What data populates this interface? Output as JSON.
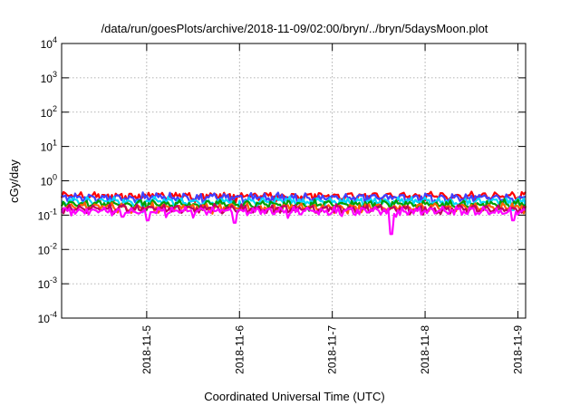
{
  "chart_data": {
    "type": "line",
    "title": "/data/run/goesPlots/archive/2018-11-09/02:00/bryn/../bryn/5daysMoon.plot",
    "xlabel": "Coordinated Universal Time (UTC)",
    "ylabel": "cGy/day",
    "yscale": "log",
    "ylim": [
      0.0001,
      10000
    ],
    "y_ticks": [
      {
        "value": 0.0001,
        "base": "10",
        "exp": "-4"
      },
      {
        "value": 0.001,
        "base": "10",
        "exp": "-3"
      },
      {
        "value": 0.01,
        "base": "10",
        "exp": "-2"
      },
      {
        "value": 0.1,
        "base": "10",
        "exp": "-1"
      },
      {
        "value": 1,
        "base": "10",
        "exp": "0"
      },
      {
        "value": 10,
        "base": "10",
        "exp": "1"
      },
      {
        "value": 100,
        "base": "10",
        "exp": "2"
      },
      {
        "value": 1000,
        "base": "10",
        "exp": "3"
      },
      {
        "value": 10000,
        "base": "10",
        "exp": "4"
      }
    ],
    "xlim": [
      "2018-11-04 02:00",
      "2018-11-09 02:00"
    ],
    "x_ticks": [
      {
        "value": "2018-11-05 00:00",
        "label": "2018-11-5"
      },
      {
        "value": "2018-11-06 00:00",
        "label": "2018-11-6"
      },
      {
        "value": "2018-11-07 00:00",
        "label": "2018-11-7"
      },
      {
        "value": "2018-11-08 00:00",
        "label": "2018-11-8"
      },
      {
        "value": "2018-11-09 00:00",
        "label": "2018-11-9"
      }
    ],
    "grid": true,
    "legend": "none",
    "series": [
      {
        "color": "#ff0000",
        "base": 0.36,
        "dips": []
      },
      {
        "color": "#4040ff",
        "base": 0.33,
        "dips": []
      },
      {
        "color": "#00d8ff",
        "base": 0.25,
        "dips": [
          {
            "x": "2018-11-04 23:00",
            "value": 0.12
          },
          {
            "x": "2018-11-05 23:10",
            "value": 0.13
          },
          {
            "x": "2018-11-08 22:50",
            "value": 0.14
          }
        ]
      },
      {
        "color": "#00a000",
        "base": 0.21,
        "dips": []
      },
      {
        "color": "#ff6000",
        "base": 0.17,
        "dips": []
      },
      {
        "color": "#c00060",
        "base": 0.155,
        "dips": []
      },
      {
        "color": "#ff00ff",
        "base": 0.13,
        "dips": [
          {
            "x": "2018-11-04 17:40",
            "value": 0.09
          },
          {
            "x": "2018-11-05 00:10",
            "value": 0.07
          },
          {
            "x": "2018-11-05 22:50",
            "value": 0.06
          },
          {
            "x": "2018-11-07 15:20",
            "value": 0.028
          },
          {
            "x": "2018-11-08 22:50",
            "value": 0.07
          }
        ]
      }
    ]
  }
}
